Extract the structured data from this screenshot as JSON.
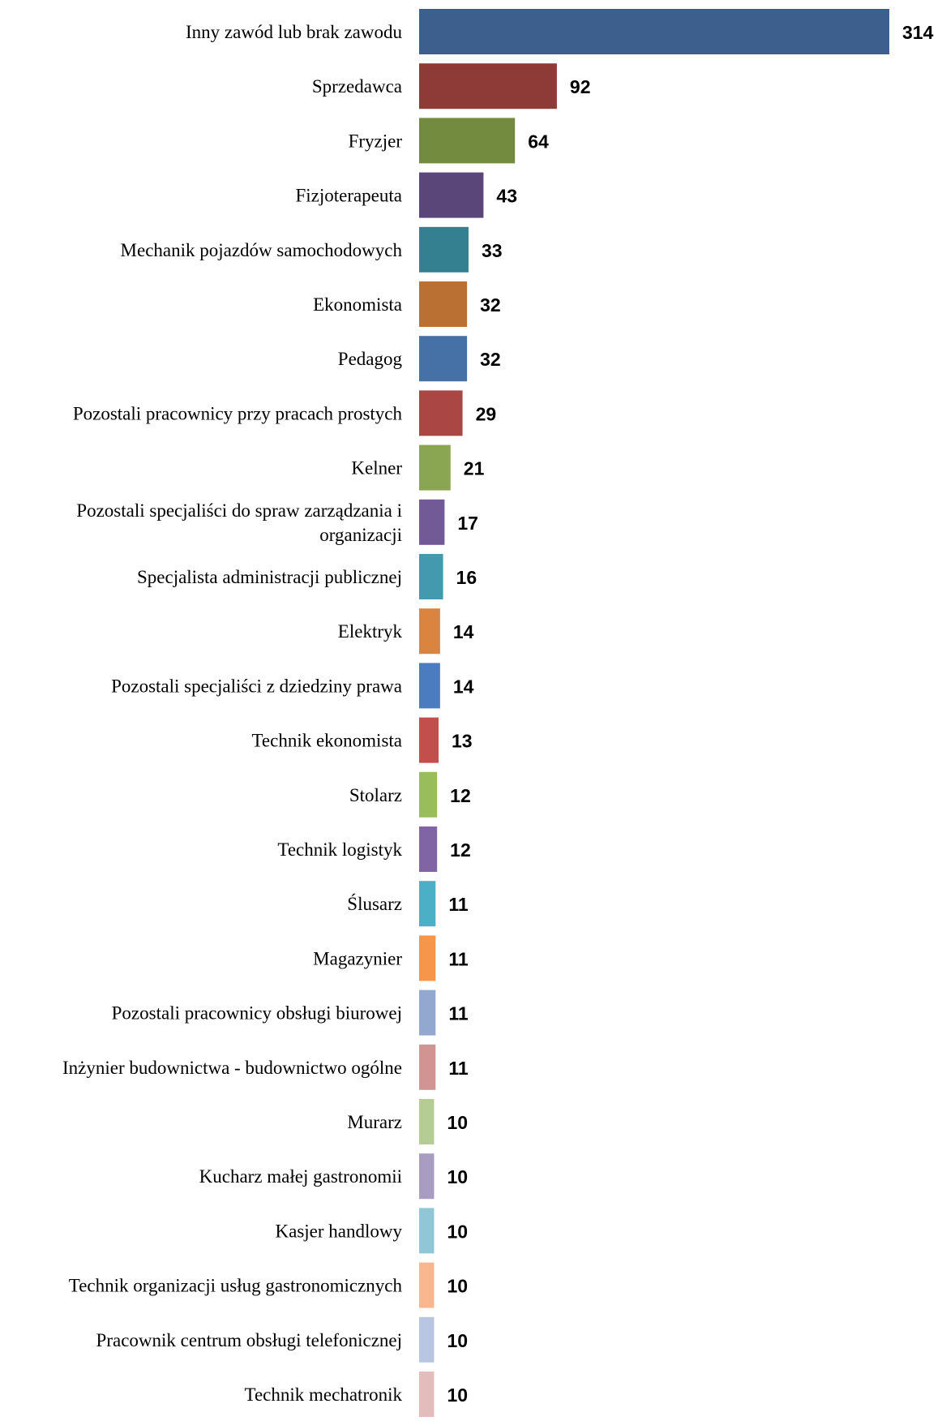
{
  "chart_data": {
    "type": "bar",
    "orientation": "horizontal",
    "grid": false,
    "legend": "none",
    "xlim": [
      0,
      314
    ],
    "categories": [
      [
        "Inny zawód lub brak zawodu"
      ],
      [
        "Sprzedawca"
      ],
      [
        "Fryzjer"
      ],
      [
        "Fizjoterapeuta"
      ],
      [
        "Mechanik pojazdów samochodowych"
      ],
      [
        "Ekonomista"
      ],
      [
        "Pedagog"
      ],
      [
        "Pozostali pracownicy przy pracach prostych"
      ],
      [
        "Kelner"
      ],
      [
        "Pozostali specjaliści do spraw zarządzania i",
        "organizacji"
      ],
      [
        "Specjalista administracji publicznej"
      ],
      [
        "Elektryk"
      ],
      [
        "Pozostali specjaliści z dziedziny prawa"
      ],
      [
        "Technik ekonomista"
      ],
      [
        "Stolarz"
      ],
      [
        "Technik logistyk"
      ],
      [
        "Ślusarz"
      ],
      [
        "Magazynier"
      ],
      [
        "Pozostali pracownicy obsługi biurowej"
      ],
      [
        "Inżynier budownictwa - budownictwo ogólne"
      ],
      [
        "Murarz"
      ],
      [
        "Kucharz małej gastronomii"
      ],
      [
        "Kasjer handlowy"
      ],
      [
        "Technik organizacji usług gastronomicznych"
      ],
      [
        "Pracownik centrum obsługi telefonicznej"
      ],
      [
        "Technik mechatronik"
      ]
    ],
    "values": [
      314,
      92,
      64,
      43,
      33,
      32,
      32,
      29,
      21,
      17,
      16,
      14,
      14,
      13,
      12,
      12,
      11,
      11,
      11,
      11,
      10,
      10,
      10,
      10,
      10,
      10
    ],
    "colors": [
      "#3C5F8E",
      "#8E3B37",
      "#728B3F",
      "#5B467A",
      "#358090",
      "#BA6F33",
      "#4671A6",
      "#AA4744",
      "#8BA653",
      "#725A96",
      "#439AAE",
      "#DA8440",
      "#4C7CC0",
      "#C24F4C",
      "#99BD5A",
      "#8164A3",
      "#4BAFC6",
      "#F6964A",
      "#92A8CF",
      "#D19493",
      "#B5CD95",
      "#A89CC0",
      "#90C6D5",
      "#F9B68F",
      "#B8C6E1",
      "#E3BDBC"
    ]
  }
}
